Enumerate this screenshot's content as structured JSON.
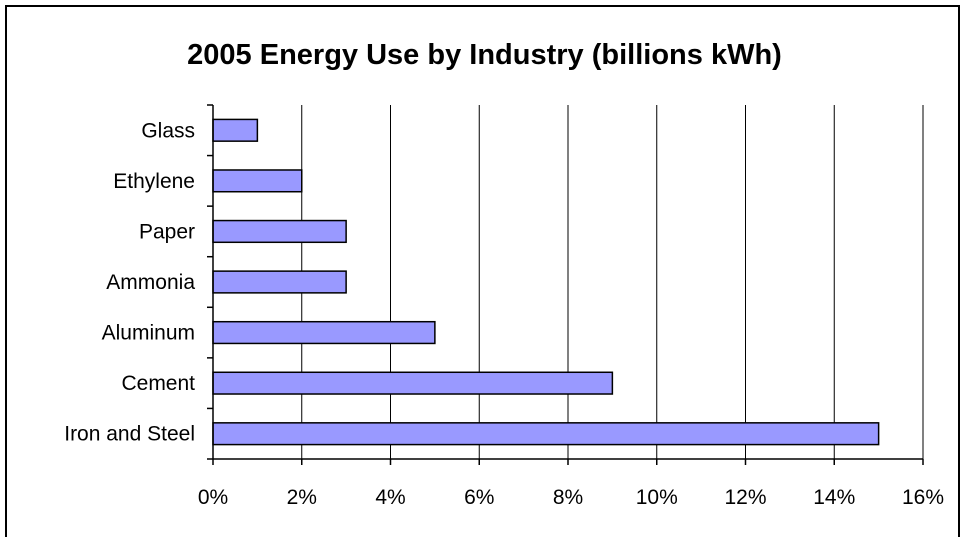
{
  "chart_data": {
    "type": "bar",
    "orientation": "horizontal",
    "title": "2005 Energy Use by Industry (billions kWh)",
    "categories": [
      "Glass",
      "Ethylene",
      "Paper",
      "Ammonia",
      "Aluminum",
      "Cement",
      "Iron and Steel"
    ],
    "values": [
      1,
      2,
      3,
      3,
      5,
      9,
      15
    ],
    "xlabel": "",
    "ylabel": "",
    "xlim": [
      0,
      16
    ],
    "x_tick_values": [
      0,
      2,
      4,
      6,
      8,
      10,
      12,
      14,
      16
    ],
    "x_tick_labels": [
      "0%",
      "2%",
      "4%",
      "6%",
      "8%",
      "10%",
      "12%",
      "14%",
      "16%"
    ],
    "grid": "vertical major gridlines",
    "legend": "none",
    "colors": {
      "bar_fill": "#9999ff",
      "bar_stroke": "#000000",
      "grid": "#000000",
      "background": "#ffffff"
    }
  }
}
